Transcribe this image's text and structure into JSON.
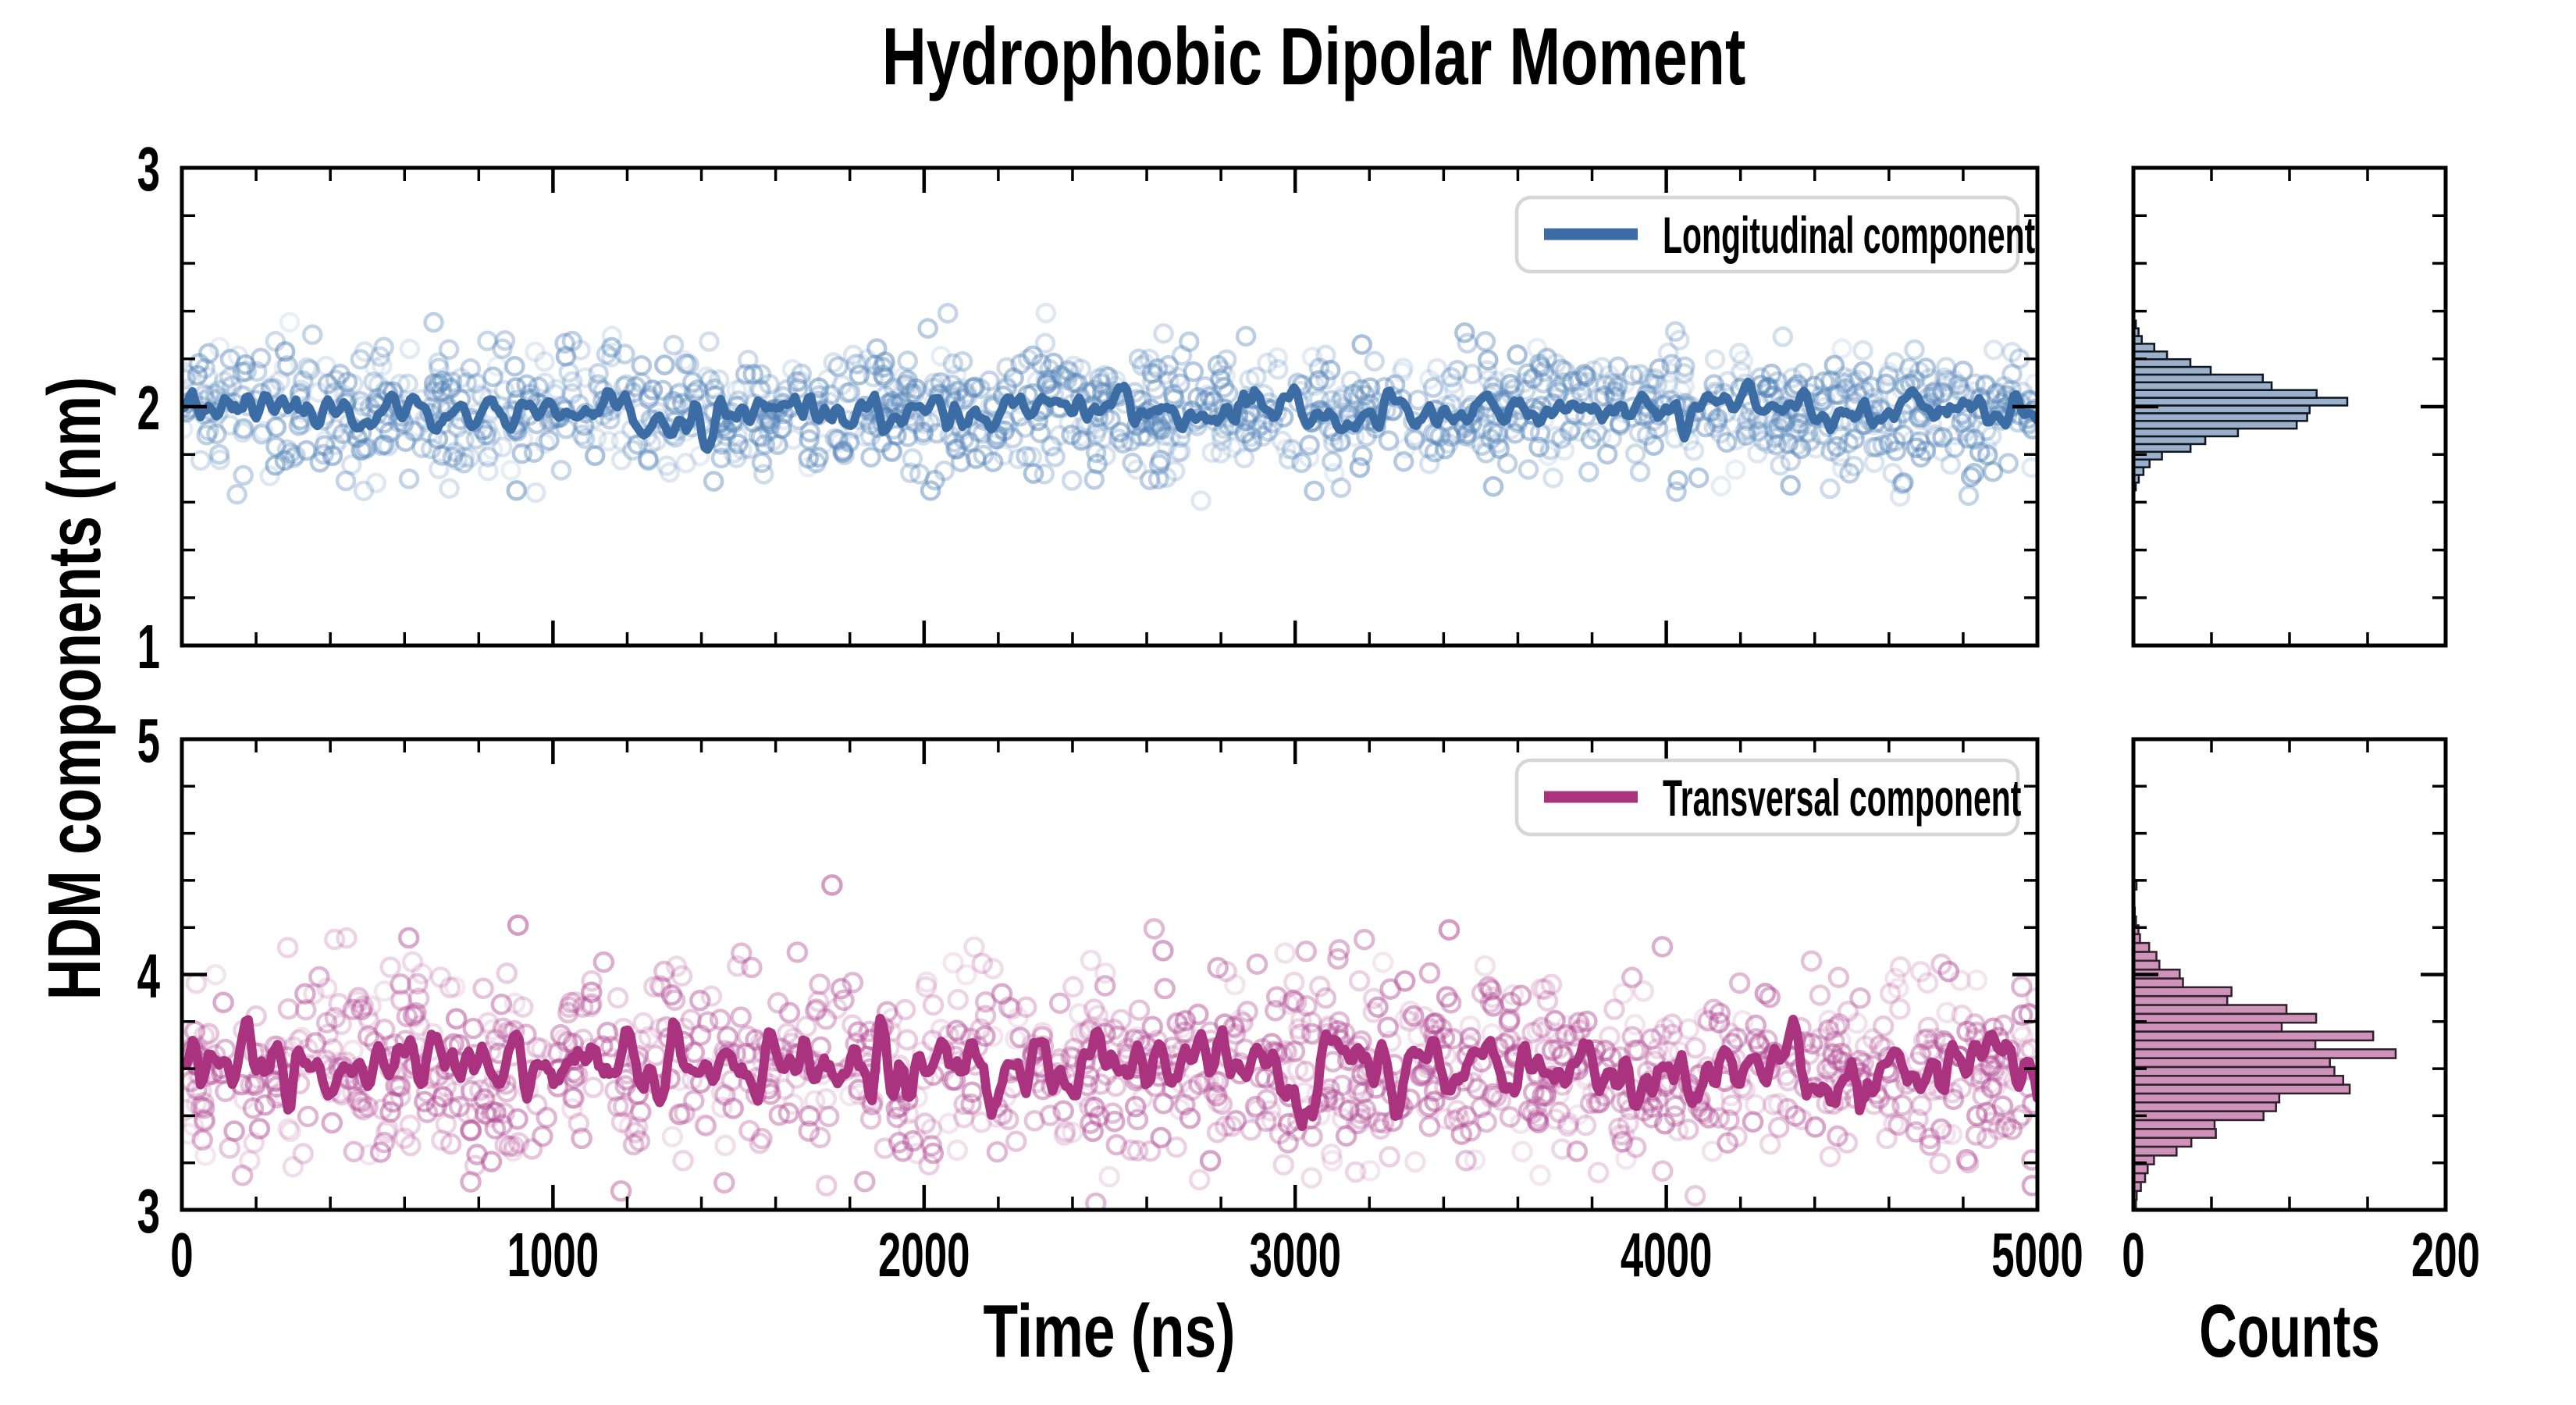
{
  "figure": {
    "title": "Hydrophobic Dipolar Moment",
    "xlabel": "Time (ns)",
    "ylabel": "HDM components (nm)",
    "counts_label": "Counts",
    "background": "#ffffff"
  },
  "chart_data": [
    {
      "id": "longitudinal-component-timeseries",
      "type": "scatter+line",
      "legend": "Longitudinal component",
      "x_range": [
        0,
        5000
      ],
      "x_major_ticks": [
        0,
        1000,
        2000,
        3000,
        4000,
        5000
      ],
      "x_tick_labels": [
        "0",
        "1000",
        "2000",
        "3000",
        "4000",
        "5000"
      ],
      "x_minor_step": 200,
      "y_range": [
        1,
        3
      ],
      "y_major_ticks": [
        1,
        2,
        3
      ],
      "y_tick_labels": [
        "1",
        "2",
        "3"
      ],
      "y_minor_step": 0.2,
      "show_x_tick_labels": false,
      "scatter": {
        "n": 1400,
        "mean": 1.98,
        "sd": 0.13,
        "clip": [
          1.56,
          2.44
        ],
        "marker": "open-circle",
        "radius": 11,
        "seed": 11,
        "outliers": []
      },
      "line": {
        "mean": 1.975,
        "sd": 0.036,
        "points": 700,
        "width": 11,
        "seed": 23
      },
      "colors": {
        "line": "#3b6da4",
        "scatter": "#5484b8"
      }
    },
    {
      "id": "transversal-component-timeseries",
      "type": "scatter+line",
      "legend": "Transversal component",
      "x_range": [
        0,
        5000
      ],
      "x_major_ticks": [
        0,
        1000,
        2000,
        3000,
        4000,
        5000
      ],
      "x_tick_labels": [
        "0",
        "1000",
        "2000",
        "3000",
        "4000",
        "5000"
      ],
      "x_minor_step": 200,
      "y_range": [
        3,
        5
      ],
      "y_major_ticks": [
        3,
        4,
        5
      ],
      "y_tick_labels": [
        "3",
        "4",
        "5"
      ],
      "y_minor_step": 0.2,
      "show_x_tick_labels": true,
      "scatter": {
        "n": 1280,
        "mean": 3.61,
        "sd": 0.21,
        "clip": [
          2.99,
          4.22
        ],
        "marker": "open-circle",
        "radius": 11.5,
        "seed": 37,
        "outliers": [
          [
            1752,
            4.38
          ],
          [
            906,
            4.21
          ],
          [
            3415,
            4.19
          ]
        ]
      },
      "line": {
        "mean": 3.605,
        "sd": 0.064,
        "points": 700,
        "width": 12,
        "seed": 53
      },
      "colors": {
        "line": "#aa3380",
        "scatter": "#b04892"
      }
    },
    {
      "id": "longitudinal-component-histogram",
      "type": "histogram",
      "orientation": "horizontal",
      "counts_range": [
        0,
        200
      ],
      "counts_major_ticks": [
        0,
        200
      ],
      "counts_tick_labels": [
        "0",
        "200"
      ],
      "counts_minor_ticks": [
        50,
        100,
        150
      ],
      "value_range": [
        1,
        3
      ],
      "value_major_ticks": [
        1,
        2,
        3
      ],
      "value_minor_step": 0.2,
      "show_counts_tick_labels": false,
      "bins": {
        "count": 26,
        "lo": 1.585,
        "hi": 2.425,
        "center": 2.005,
        "sigma": 0.115,
        "peak": 112,
        "max_count": 137,
        "noise": 0.22,
        "seed": 71
      },
      "extra_bins": [],
      "colors": {
        "fill": "#9bb0ca",
        "edge": "#10161f"
      }
    },
    {
      "id": "transversal-component-histogram",
      "type": "histogram",
      "orientation": "horizontal",
      "counts_range": [
        0,
        200
      ],
      "counts_major_ticks": [
        0,
        200
      ],
      "counts_tick_labels": [
        "0",
        "200"
      ],
      "counts_minor_ticks": [
        50,
        100,
        150
      ],
      "value_range": [
        3,
        5
      ],
      "value_major_ticks": [
        3,
        4,
        5
      ],
      "value_minor_step": 0.2,
      "show_counts_tick_labels": true,
      "bins": {
        "count": 38,
        "lo": 3.005,
        "hi": 4.435,
        "center": 3.635,
        "sigma": 0.2,
        "peak": 150,
        "max_count": 168,
        "noise": 0.22,
        "seed": 89
      },
      "extra_bins": [
        {
          "value": 4.38,
          "count": 2
        }
      ],
      "colors": {
        "fill": "#cf93bb",
        "edge": "#2f2129"
      }
    }
  ]
}
